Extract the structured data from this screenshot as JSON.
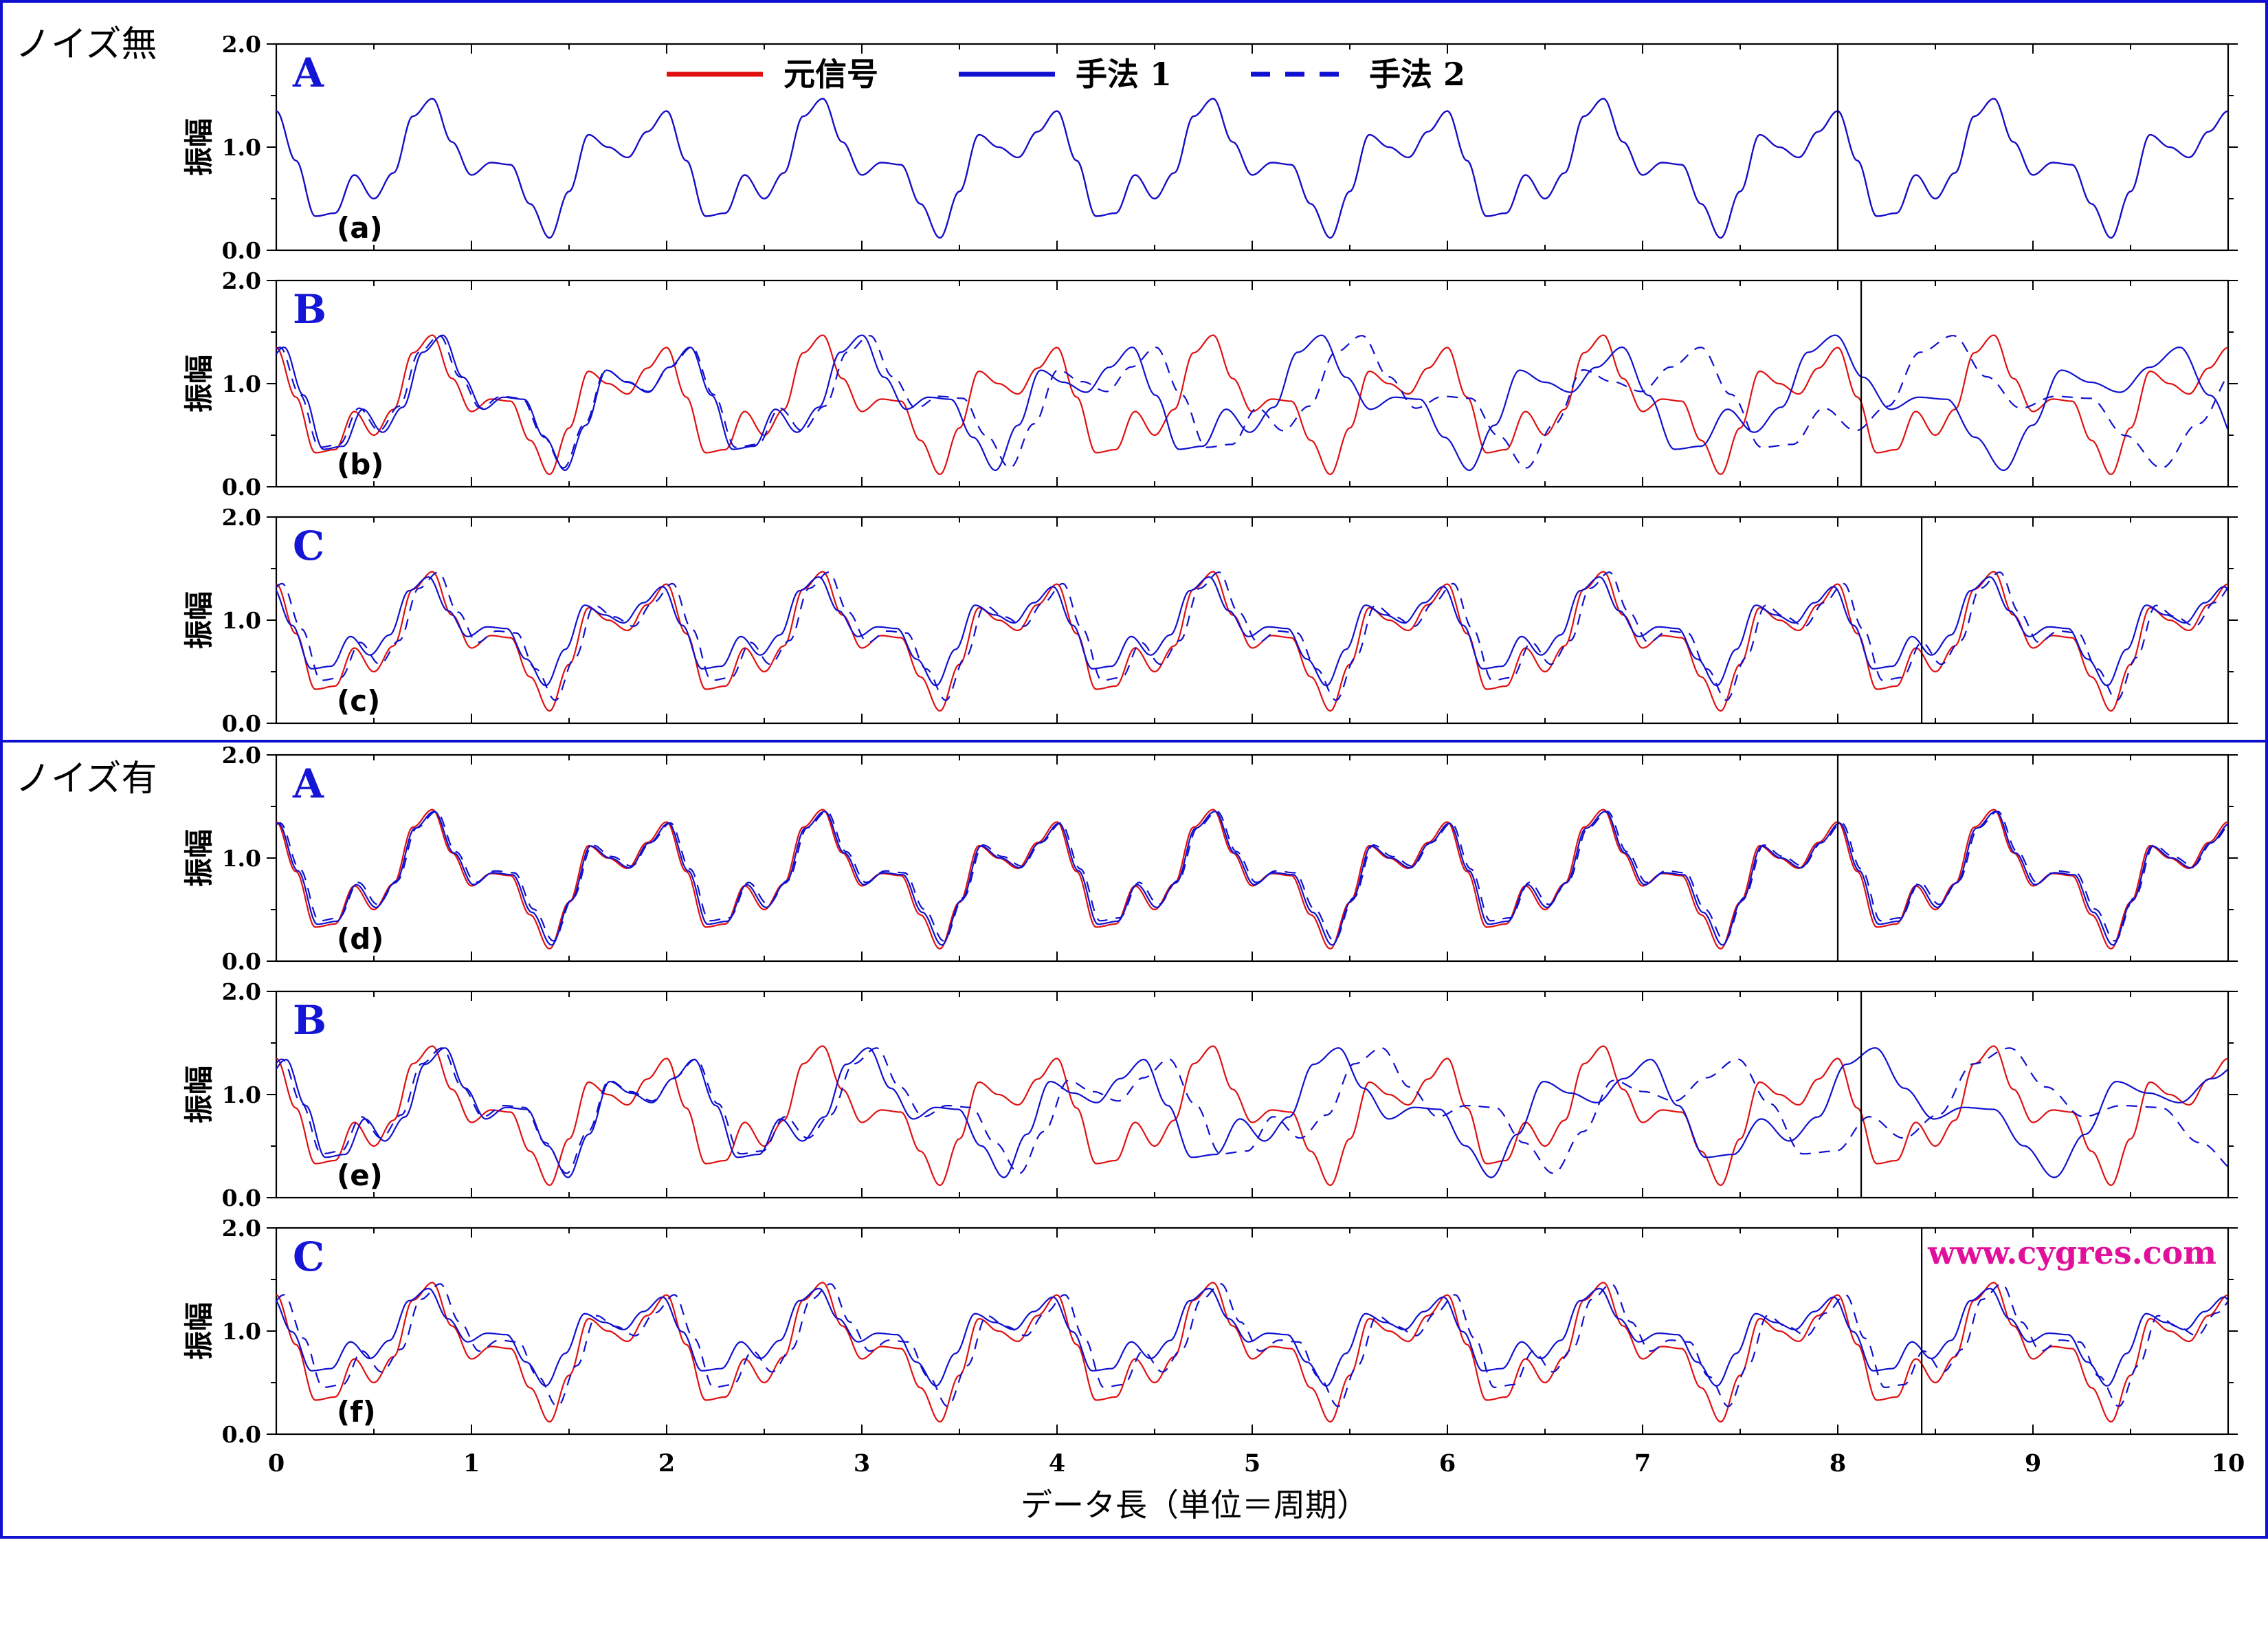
{
  "sections": [
    {
      "label": "ノイズ無",
      "panels": [
        0,
        1,
        2
      ]
    },
    {
      "label": "ノイズ有",
      "panels": [
        3,
        4,
        5
      ]
    }
  ],
  "legend": [
    {
      "label": "元信号",
      "color": "#e01010",
      "dash": "solid"
    },
    {
      "label": "手法 1",
      "color": "#1010d0",
      "dash": "solid"
    },
    {
      "label": "手法 2",
      "color": "#1010d0",
      "dash": "dashed"
    }
  ],
  "watermark": "www.cygres.com",
  "chart_data": {
    "type": "line",
    "xlabel": "データ長（単位＝周期）",
    "ylabel": "振幅",
    "xlim": [
      0,
      10
    ],
    "ylim": [
      0.0,
      2.0
    ],
    "xticks": [
      "0",
      "1",
      "2",
      "3",
      "4",
      "5",
      "6",
      "7",
      "8",
      "9",
      "10"
    ],
    "yticks": [
      "0.0",
      "1.0",
      "2.0"
    ],
    "original_signal": {
      "name": "元信号",
      "period": 2.0,
      "x": [
        0.0,
        0.1,
        0.2,
        0.3,
        0.4,
        0.5,
        0.6,
        0.7,
        0.8,
        0.9,
        1.0,
        1.1,
        1.2,
        1.3,
        1.4,
        1.5,
        1.6,
        1.7,
        1.8,
        1.9,
        2.0
      ],
      "y": [
        1.35,
        0.87,
        0.33,
        0.36,
        0.73,
        0.5,
        0.75,
        1.3,
        1.47,
        1.05,
        0.73,
        0.85,
        0.83,
        0.45,
        0.12,
        0.57,
        1.12,
        1.0,
        0.9,
        1.15,
        1.35
      ]
    },
    "panels": [
      {
        "id": "a",
        "section": "ノイズ無",
        "method": "A",
        "marker_x": 8.0,
        "series": [
          {
            "name": "手法 1",
            "amplitude_scale": 1.0,
            "shift": 0.0,
            "offset": 0.0
          },
          {
            "name": "手法 2",
            "amplitude_scale": 1.0,
            "shift": 0.0,
            "offset": 0.0
          }
        ]
      },
      {
        "id": "b",
        "section": "ノイズ無",
        "method": "B",
        "marker_x": 8.12,
        "series": [
          {
            "name": "手法 1",
            "amplitude_scale": 0.97,
            "shift": 0.04,
            "offset": 0.02,
            "growth": 0.018
          },
          {
            "name": "手法 2",
            "amplitude_scale": 0.95,
            "shift": 0.02,
            "offset": 0.03,
            "growth": 0.024
          }
        ]
      },
      {
        "id": "c",
        "section": "ノイズ無",
        "method": "C",
        "marker_x": 8.43,
        "series": [
          {
            "name": "手法 1",
            "amplitude_scale": 0.78,
            "shift": -0.02,
            "offset": 0.1
          },
          {
            "name": "手法 2",
            "amplitude_scale": 0.92,
            "shift": 0.03,
            "offset": 0.05
          }
        ]
      },
      {
        "id": "d",
        "section": "ノイズ有",
        "method": "A",
        "marker_x": 8.0,
        "series": [
          {
            "name": "手法 1",
            "amplitude_scale": 0.96,
            "shift": 0.01,
            "offset": 0.01
          },
          {
            "name": "手法 2",
            "amplitude_scale": 0.93,
            "shift": 0.02,
            "offset": 0.03
          }
        ]
      },
      {
        "id": "e",
        "section": "ノイズ有",
        "method": "B",
        "marker_x": 8.12,
        "series": [
          {
            "name": "手法 1",
            "amplitude_scale": 0.93,
            "shift": 0.05,
            "offset": 0.03,
            "growth": 0.02
          },
          {
            "name": "手法 2",
            "amplitude_scale": 0.9,
            "shift": 0.03,
            "offset": 0.05,
            "growth": 0.026
          }
        ]
      },
      {
        "id": "f",
        "section": "ノイズ有",
        "method": "C",
        "marker_x": 8.43,
        "series": [
          {
            "name": "手法 1",
            "amplitude_scale": 0.7,
            "shift": -0.02,
            "offset": 0.15
          },
          {
            "name": "手法 2",
            "amplitude_scale": 0.88,
            "shift": 0.04,
            "offset": 0.07
          }
        ]
      }
    ]
  }
}
